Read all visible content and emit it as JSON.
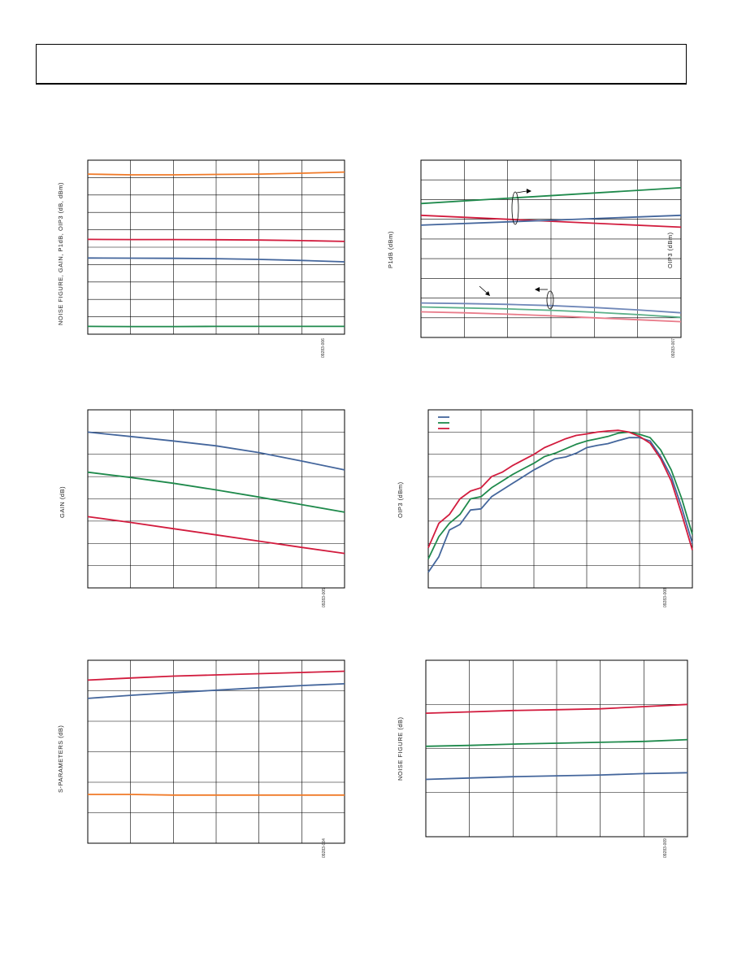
{
  "page": {
    "header": ""
  },
  "chart_data": [
    {
      "id": "c1",
      "type": "line",
      "ylabel": "NOISE FIGURE, GAIN, P1dB, OIP3 (dB, dBm)",
      "fig_id": "09283-006",
      "ylim": [
        0,
        10
      ],
      "xlim": [
        0,
        6
      ],
      "series": [
        {
          "color": "#f07a28",
          "x": [
            0,
            1,
            2,
            3,
            4,
            5,
            6
          ],
          "y": [
            9.2,
            9.16,
            9.16,
            9.18,
            9.2,
            9.25,
            9.32
          ]
        },
        {
          "color": "#d21c3e",
          "x": [
            0,
            1,
            2,
            3,
            4,
            5,
            6
          ],
          "y": [
            5.45,
            5.44,
            5.44,
            5.43,
            5.41,
            5.38,
            5.33
          ]
        },
        {
          "color": "#44669c",
          "x": [
            0,
            1,
            2,
            3,
            4,
            5,
            6
          ],
          "y": [
            4.38,
            4.37,
            4.36,
            4.34,
            4.3,
            4.24,
            4.16
          ]
        },
        {
          "color": "#1f8a4c",
          "x": [
            0,
            1,
            2,
            3,
            4,
            5,
            6
          ],
          "y": [
            0.45,
            0.44,
            0.44,
            0.45,
            0.45,
            0.45,
            0.45
          ]
        }
      ]
    },
    {
      "id": "c2",
      "type": "line",
      "ylabel": "P1dB (dBm)",
      "ylabel_right": "OIP3 (dBm)",
      "fig_id": "09283-007",
      "ylim": [
        0,
        9
      ],
      "xlim": [
        0,
        6
      ],
      "series": [
        {
          "color": "#1f8a4c",
          "x": [
            0,
            6
          ],
          "y": [
            6.8,
            7.6
          ]
        },
        {
          "color": "#d21c3e",
          "x": [
            0,
            6
          ],
          "y": [
            6.2,
            5.6
          ]
        },
        {
          "color": "#44669c",
          "x": [
            0,
            6
          ],
          "y": [
            5.7,
            6.2
          ]
        },
        {
          "color": "#6f87b8",
          "x": [
            0,
            1,
            2,
            3,
            4,
            5,
            6
          ],
          "y": [
            1.75,
            1.72,
            1.68,
            1.62,
            1.52,
            1.4,
            1.25
          ]
        },
        {
          "color": "#5bb089",
          "x": [
            0,
            1,
            2,
            3,
            4,
            5,
            6
          ],
          "y": [
            1.55,
            1.5,
            1.45,
            1.38,
            1.28,
            1.16,
            1.02
          ]
        },
        {
          "color": "#e97b8a",
          "x": [
            0,
            1,
            2,
            3,
            4,
            5,
            6
          ],
          "y": [
            1.3,
            1.25,
            1.18,
            1.1,
            1.0,
            0.9,
            0.8
          ]
        }
      ]
    },
    {
      "id": "c3",
      "type": "line",
      "ylabel": "GAIN (dB)",
      "fig_id": "09283-005",
      "ylim": [
        0,
        8
      ],
      "xlim": [
        0,
        6
      ],
      "series": [
        {
          "color": "#44669c",
          "x": [
            0,
            1,
            2,
            3,
            4,
            5,
            6
          ],
          "y": [
            7.0,
            6.8,
            6.6,
            6.38,
            6.08,
            5.7,
            5.3
          ]
        },
        {
          "color": "#1f8a4c",
          "x": [
            0,
            1,
            2,
            3,
            4,
            5,
            6
          ],
          "y": [
            5.2,
            4.96,
            4.7,
            4.4,
            4.08,
            3.74,
            3.4
          ]
        },
        {
          "color": "#d21c3e",
          "x": [
            0,
            1,
            2,
            3,
            4,
            5,
            6
          ],
          "y": [
            3.2,
            2.94,
            2.66,
            2.38,
            2.1,
            1.82,
            1.55
          ]
        }
      ]
    },
    {
      "id": "c4",
      "type": "line",
      "ylabel": "OIP3 (dBm)",
      "fig_id": "09283-008",
      "ylim": [
        0,
        8
      ],
      "xlim": [
        0,
        5
      ],
      "legend": [
        {
          "color": "#44669c"
        },
        {
          "color": "#1f8a4c"
        },
        {
          "color": "#d21c3e"
        }
      ],
      "series": [
        {
          "color": "#44669c",
          "x": [
            0,
            0.2,
            0.4,
            0.6,
            0.8,
            1.0,
            1.2,
            1.4,
            1.6,
            1.8,
            2.0,
            2.2,
            2.4,
            2.6,
            2.8,
            3.0,
            3.2,
            3.4,
            3.6,
            3.8,
            4.0,
            4.2,
            4.4,
            4.6,
            4.8,
            5.0
          ],
          "y": [
            0.7,
            1.4,
            2.6,
            2.85,
            3.5,
            3.55,
            4.1,
            4.4,
            4.7,
            5.0,
            5.3,
            5.55,
            5.8,
            5.88,
            6.05,
            6.3,
            6.4,
            6.48,
            6.62,
            6.75,
            6.75,
            6.6,
            5.9,
            5.0,
            3.6,
            2.0
          ]
        },
        {
          "color": "#1f8a4c",
          "x": [
            0,
            0.2,
            0.4,
            0.6,
            0.8,
            1.0,
            1.2,
            1.4,
            1.6,
            1.8,
            2.0,
            2.2,
            2.4,
            2.6,
            2.8,
            3.0,
            3.2,
            3.4,
            3.6,
            3.8,
            4.0,
            4.2,
            4.4,
            4.6,
            4.8,
            5.0
          ],
          "y": [
            1.3,
            2.3,
            2.9,
            3.3,
            4.0,
            4.1,
            4.5,
            4.8,
            5.1,
            5.35,
            5.6,
            5.9,
            6.05,
            6.25,
            6.45,
            6.6,
            6.7,
            6.8,
            6.95,
            7.0,
            6.9,
            6.75,
            6.2,
            5.3,
            4.0,
            2.4
          ]
        },
        {
          "color": "#d21c3e",
          "x": [
            0,
            0.2,
            0.4,
            0.6,
            0.8,
            1.0,
            1.2,
            1.4,
            1.6,
            1.8,
            2.0,
            2.2,
            2.4,
            2.6,
            2.8,
            3.0,
            3.2,
            3.4,
            3.6,
            3.8,
            4.0,
            4.2,
            4.4,
            4.6,
            4.8,
            5.0
          ],
          "y": [
            1.8,
            2.9,
            3.3,
            4.0,
            4.35,
            4.5,
            5.0,
            5.2,
            5.5,
            5.75,
            6.0,
            6.3,
            6.5,
            6.7,
            6.85,
            6.92,
            7.0,
            7.05,
            7.08,
            7.0,
            6.8,
            6.5,
            5.8,
            4.8,
            3.3,
            1.7
          ]
        }
      ]
    },
    {
      "id": "c5",
      "type": "line",
      "ylabel": "S-PARAMETERS (dB)",
      "fig_id": "09283-004",
      "ylim": [
        0,
        6
      ],
      "xlim": [
        0,
        6
      ],
      "series": [
        {
          "color": "#d21c3e",
          "x": [
            0,
            1,
            2,
            3,
            4,
            5,
            6
          ],
          "y": [
            5.35,
            5.42,
            5.48,
            5.52,
            5.56,
            5.6,
            5.64
          ]
        },
        {
          "color": "#44669c",
          "x": [
            0,
            1,
            2,
            3,
            4,
            5,
            6
          ],
          "y": [
            4.75,
            4.85,
            4.94,
            5.02,
            5.1,
            5.17,
            5.23
          ]
        },
        {
          "color": "#f07a28",
          "x": [
            0,
            1,
            2,
            3,
            4,
            5,
            6
          ],
          "y": [
            1.6,
            1.6,
            1.58,
            1.58,
            1.58,
            1.58,
            1.58
          ]
        }
      ]
    },
    {
      "id": "c6",
      "type": "line",
      "ylabel": "NOISE FIGURE (dB)",
      "fig_id": "09283-009",
      "ylim": [
        0,
        4
      ],
      "xlim": [
        0,
        6
      ],
      "series": [
        {
          "color": "#d21c3e",
          "x": [
            0,
            1,
            2,
            3,
            4,
            5,
            6
          ],
          "y": [
            2.8,
            2.83,
            2.86,
            2.88,
            2.9,
            2.95,
            3.0
          ]
        },
        {
          "color": "#1f8a4c",
          "x": [
            0,
            1,
            2,
            3,
            4,
            5,
            6
          ],
          "y": [
            2.05,
            2.07,
            2.1,
            2.12,
            2.14,
            2.16,
            2.2
          ]
        },
        {
          "color": "#44669c",
          "x": [
            0,
            1,
            2,
            3,
            4,
            5,
            6
          ],
          "y": [
            1.3,
            1.33,
            1.36,
            1.38,
            1.4,
            1.43,
            1.45
          ]
        }
      ]
    }
  ]
}
